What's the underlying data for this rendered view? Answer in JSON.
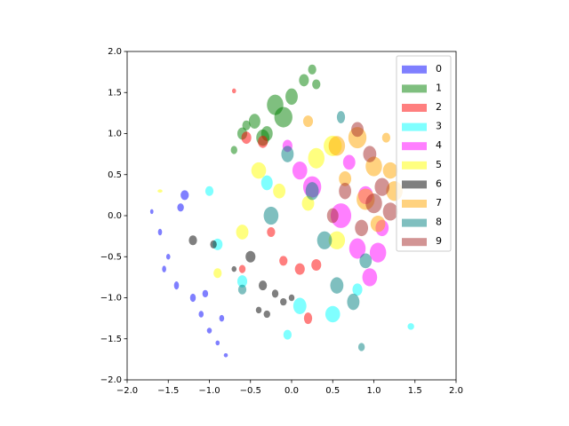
{
  "chart_data": {
    "type": "scatter",
    "xlim": [
      -2,
      2
    ],
    "ylim": [
      -2,
      2
    ],
    "xticks": [
      {
        "value": -2,
        "label": "−2.0"
      },
      {
        "value": -1.5,
        "label": "−1.5"
      },
      {
        "value": -1,
        "label": "−1.0"
      },
      {
        "value": -0.5,
        "label": "−0.5"
      },
      {
        "value": 0,
        "label": "0.0"
      },
      {
        "value": 0.5,
        "label": "0.5"
      },
      {
        "value": 1,
        "label": "1.0"
      },
      {
        "value": 1.5,
        "label": "1.5"
      },
      {
        "value": 2,
        "label": "2.0"
      }
    ],
    "yticks": [
      {
        "value": -2,
        "label": "−2.0"
      },
      {
        "value": -1.5,
        "label": "−1.5"
      },
      {
        "value": -1,
        "label": "−1.0"
      },
      {
        "value": -0.5,
        "label": "−0.5"
      },
      {
        "value": 0,
        "label": "0.0"
      },
      {
        "value": 0.5,
        "label": "0.5"
      },
      {
        "value": 1,
        "label": "1.0"
      },
      {
        "value": 1.5,
        "label": "1.5"
      },
      {
        "value": 2,
        "label": "2.0"
      }
    ],
    "legend": "upper right",
    "series": [
      {
        "name": "0",
        "color": "#0000ff",
        "x": [
          -1.7,
          -1.6,
          -1.5,
          -1.4,
          -1.3,
          -1.2,
          -1.1,
          -1.0,
          -0.9,
          -0.8,
          -1.55,
          -1.35,
          -1.05,
          -0.85
        ],
        "y": [
          0.05,
          -0.2,
          -0.5,
          -0.85,
          0.25,
          -1.0,
          -1.2,
          -1.4,
          -1.55,
          -1.7,
          -0.65,
          0.1,
          -0.95,
          -1.25
        ],
        "widths": [
          0.04,
          0.05,
          0.05,
          0.06,
          0.1,
          0.07,
          0.06,
          0.06,
          0.05,
          0.05,
          0.05,
          0.08,
          0.07,
          0.06
        ],
        "heights": [
          0.06,
          0.08,
          0.07,
          0.1,
          0.12,
          0.1,
          0.08,
          0.07,
          0.06,
          0.05,
          0.08,
          0.1,
          0.09,
          0.08
        ]
      },
      {
        "name": "1",
        "color": "#008000",
        "x": [
          -0.7,
          -0.6,
          -0.45,
          -0.35,
          -0.2,
          -0.1,
          0.0,
          0.15,
          0.25,
          -0.55,
          -0.3,
          0.3
        ],
        "y": [
          0.8,
          1.0,
          1.15,
          0.95,
          1.35,
          1.2,
          1.45,
          1.65,
          1.78,
          1.1,
          1.0,
          1.6
        ],
        "widths": [
          0.08,
          0.12,
          0.14,
          0.16,
          0.2,
          0.22,
          0.15,
          0.12,
          0.1,
          0.1,
          0.14,
          0.1
        ],
        "heights": [
          0.1,
          0.15,
          0.18,
          0.2,
          0.25,
          0.25,
          0.2,
          0.15,
          0.12,
          0.12,
          0.18,
          0.12
        ]
      },
      {
        "name": "2",
        "color": "#ff0000",
        "x": [
          -0.7,
          -0.35,
          -0.1,
          0.3,
          0.2,
          -0.6,
          -0.25,
          0.1,
          -0.55
        ],
        "y": [
          1.52,
          0.9,
          -0.55,
          -0.6,
          -1.25,
          -0.65,
          -0.2,
          -0.65,
          0.95
        ],
        "widths": [
          0.05,
          0.12,
          0.1,
          0.12,
          0.1,
          0.08,
          0.1,
          0.12,
          0.12
        ],
        "heights": [
          0.06,
          0.15,
          0.12,
          0.14,
          0.14,
          0.1,
          0.12,
          0.14,
          0.15
        ]
      },
      {
        "name": "3",
        "color": "#00ffff",
        "x": [
          -1.0,
          -0.9,
          -0.6,
          -0.3,
          0.1,
          0.5,
          0.8,
          1.45,
          -0.05
        ],
        "y": [
          0.3,
          -0.35,
          -0.8,
          0.4,
          -1.1,
          -1.2,
          -0.9,
          -1.35,
          -1.45
        ],
        "widths": [
          0.1,
          0.12,
          0.12,
          0.14,
          0.16,
          0.18,
          0.12,
          0.08,
          0.1
        ],
        "heights": [
          0.12,
          0.14,
          0.15,
          0.18,
          0.2,
          0.2,
          0.15,
          0.08,
          0.12
        ]
      },
      {
        "name": "4",
        "color": "#ff00ff",
        "x": [
          0.1,
          0.6,
          0.8,
          0.95,
          1.05,
          0.7,
          0.25,
          0.9,
          1.1,
          -0.05
        ],
        "y": [
          0.55,
          0.0,
          -0.4,
          -0.75,
          -0.45,
          0.65,
          0.35,
          0.25,
          -0.15,
          0.85
        ],
        "widths": [
          0.18,
          0.25,
          0.2,
          0.18,
          0.2,
          0.15,
          0.22,
          0.18,
          0.16,
          0.12
        ],
        "heights": [
          0.22,
          0.3,
          0.25,
          0.22,
          0.24,
          0.18,
          0.26,
          0.22,
          0.2,
          0.15
        ]
      },
      {
        "name": "5",
        "color": "#ffff00",
        "x": [
          -0.6,
          -0.4,
          -0.15,
          0.3,
          0.5,
          0.55,
          -1.6,
          -0.9,
          0.2
        ],
        "y": [
          -0.2,
          0.55,
          0.3,
          0.7,
          0.85,
          -0.3,
          0.3,
          -0.7,
          0.15
        ],
        "widths": [
          0.15,
          0.18,
          0.15,
          0.2,
          0.22,
          0.2,
          0.06,
          0.1,
          0.15
        ],
        "heights": [
          0.18,
          0.2,
          0.18,
          0.25,
          0.25,
          0.22,
          0.04,
          0.12,
          0.18
        ]
      },
      {
        "name": "6",
        "color": "#000000",
        "x": [
          -1.2,
          -0.95,
          -0.5,
          -0.35,
          -0.2,
          -0.1,
          0.0,
          -0.4,
          -0.7,
          -0.3
        ],
        "y": [
          -0.3,
          -0.35,
          -0.5,
          -0.85,
          -0.95,
          -1.05,
          -1.0,
          -1.15,
          -0.65,
          -1.2
        ],
        "widths": [
          0.1,
          0.08,
          0.12,
          0.1,
          0.08,
          0.08,
          0.07,
          0.07,
          0.06,
          0.08
        ],
        "heights": [
          0.12,
          0.1,
          0.14,
          0.12,
          0.1,
          0.09,
          0.08,
          0.08,
          0.07,
          0.09
        ]
      },
      {
        "name": "7",
        "color": "#ffa500",
        "x": [
          0.55,
          0.8,
          1.0,
          1.2,
          1.25,
          0.9,
          0.65,
          1.15,
          0.2,
          1.05
        ],
        "y": [
          0.85,
          0.95,
          0.6,
          0.55,
          0.3,
          0.2,
          0.45,
          0.95,
          1.15,
          -0.1
        ],
        "widths": [
          0.2,
          0.22,
          0.2,
          0.18,
          0.2,
          0.22,
          0.15,
          0.1,
          0.12,
          0.18
        ],
        "heights": [
          0.24,
          0.26,
          0.24,
          0.2,
          0.24,
          0.26,
          0.18,
          0.12,
          0.14,
          0.2
        ]
      },
      {
        "name": "8",
        "color": "#008080",
        "x": [
          -0.05,
          0.25,
          0.6,
          0.9,
          0.4,
          -0.6,
          -0.25,
          0.75,
          0.85,
          0.55
        ],
        "y": [
          0.75,
          0.3,
          1.2,
          -0.55,
          -0.3,
          -0.9,
          0.0,
          -1.05,
          -1.6,
          -0.85
        ],
        "widths": [
          0.15,
          0.16,
          0.1,
          0.15,
          0.18,
          0.1,
          0.18,
          0.15,
          0.08,
          0.16
        ],
        "heights": [
          0.2,
          0.22,
          0.15,
          0.18,
          0.22,
          0.12,
          0.22,
          0.2,
          0.1,
          0.2
        ]
      },
      {
        "name": "9",
        "color": "#a52a2a",
        "x": [
          0.8,
          0.95,
          1.1,
          0.65,
          1.2,
          0.5,
          0.85,
          1.0
        ],
        "y": [
          1.05,
          0.75,
          0.35,
          0.3,
          0.05,
          0.0,
          -0.15,
          0.15
        ],
        "widths": [
          0.15,
          0.16,
          0.18,
          0.15,
          0.18,
          0.14,
          0.16,
          0.2
        ],
        "heights": [
          0.18,
          0.2,
          0.22,
          0.2,
          0.22,
          0.18,
          0.2,
          0.24
        ]
      }
    ]
  }
}
